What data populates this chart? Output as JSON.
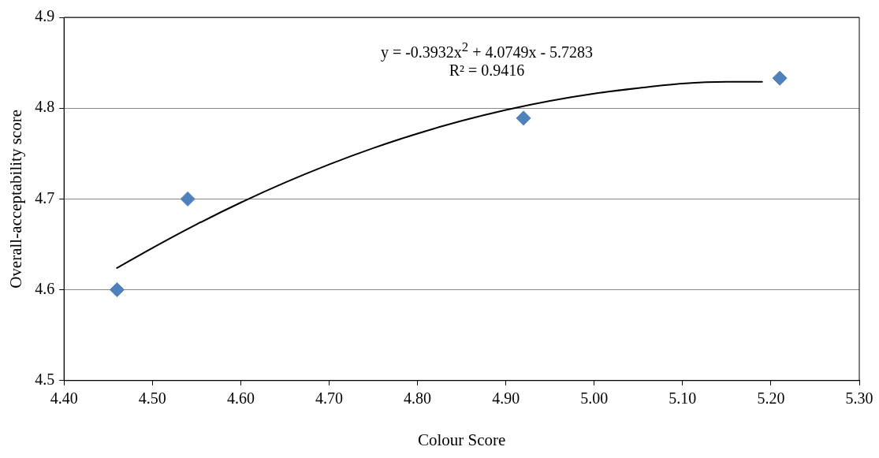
{
  "chart_data": {
    "type": "scatter",
    "xlabel": "Colour Score",
    "ylabel": "Overall-acceptability score",
    "annotations": [
      "y = -0.3932x$^{2}$ + 4.0749x - 5.7283",
      "R² = 0.9416"
    ],
    "series": [
      {
        "type": "scatter",
        "color": "#4f81bd",
        "x": [
          4.46,
          4.54,
          4.92,
          5.21
        ],
        "values": [
          4.6,
          4.7,
          4.789,
          4.833
        ],
        "marker": "diamond"
      },
      {
        "type": "line",
        "color": "#000000",
        "x": [
          4.46,
          4.5,
          4.55,
          4.6,
          4.65,
          4.7,
          4.75,
          4.8,
          4.85,
          4.9,
          4.95,
          5.0,
          5.05,
          5.1,
          5.15,
          5.19
        ],
        "values": [
          4.624,
          4.646,
          4.672,
          4.696,
          4.718,
          4.738,
          4.756,
          4.772,
          4.786,
          4.798,
          4.808,
          4.816,
          4.822,
          4.827,
          4.829,
          4.829
        ],
        "marker": "none"
      }
    ],
    "xlim": [
      4.4,
      5.3
    ],
    "xticks": [
      {
        "value": 4.4,
        "label": "4.40"
      },
      {
        "value": 4.5,
        "label": "4.50"
      },
      {
        "value": 4.6,
        "label": "4.60"
      },
      {
        "value": 4.7,
        "label": "4.70"
      },
      {
        "value": 4.8,
        "label": "4.80"
      },
      {
        "value": 4.9,
        "label": "4.90"
      },
      {
        "value": 5.0,
        "label": "5.00"
      },
      {
        "value": 5.1,
        "label": "5.10"
      },
      {
        "value": 5.2,
        "label": "5.20"
      },
      {
        "value": 5.3,
        "label": "5.30"
      }
    ],
    "ylim": [
      4.5,
      4.9
    ],
    "yticks": [
      4.5,
      4.6,
      4.7,
      4.8,
      4.9
    ],
    "grid": "y",
    "legend": false
  }
}
